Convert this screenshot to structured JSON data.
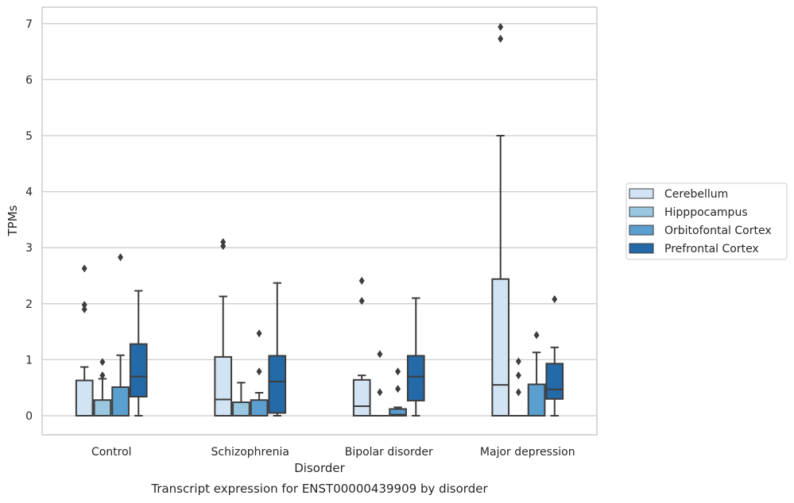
{
  "chart_data": {
    "type": "box",
    "title": "",
    "caption": "Transcript expression for ENST00000439909 by disorder",
    "xlabel": "Disorder",
    "ylabel": "TPMs",
    "ylim": [
      -0.35,
      7.3
    ],
    "yticks": [
      0,
      1,
      2,
      3,
      4,
      5,
      6,
      7
    ],
    "grid": true,
    "legend_position": "right",
    "categories": [
      "Control",
      "Schizophrenia",
      "Bipolar disorder",
      "Major depression"
    ],
    "series": [
      {
        "name": "Cerebellum",
        "color": "#d2e3f3",
        "boxes": [
          {
            "q1": 0,
            "median": 0,
            "q3": 0.63,
            "whisker_low": 0,
            "whisker_high": 0.87,
            "outliers": [
              1.9,
              1.98,
              2.63
            ]
          },
          {
            "q1": 0,
            "median": 0.29,
            "q3": 1.05,
            "whisker_low": 0,
            "whisker_high": 2.13,
            "outliers": [
              3.03,
              3.1
            ]
          },
          {
            "q1": 0,
            "median": 0.17,
            "q3": 0.64,
            "whisker_low": 0,
            "whisker_high": 0.72,
            "outliers": [
              2.05,
              2.41
            ]
          },
          {
            "q1": 0,
            "median": 0.55,
            "q3": 2.44,
            "whisker_low": 0,
            "whisker_high": 5.0,
            "outliers": [
              6.73,
              6.94
            ]
          }
        ]
      },
      {
        "name": "Hipppocampus",
        "color": "#9ac8e0",
        "boxes": [
          {
            "q1": 0,
            "median": 0,
            "q3": 0.28,
            "whisker_low": 0,
            "whisker_high": 0.66,
            "outliers": [
              0.72,
              0.96
            ]
          },
          {
            "q1": 0,
            "median": 0,
            "q3": 0.24,
            "whisker_low": 0,
            "whisker_high": 0.59,
            "outliers": []
          },
          {
            "q1": 0,
            "median": 0,
            "q3": 0,
            "whisker_low": 0,
            "whisker_high": 0,
            "outliers": [
              0.42,
              1.1
            ]
          },
          {
            "q1": 0,
            "median": 0,
            "q3": 0,
            "whisker_low": 0,
            "whisker_high": 0,
            "outliers": [
              0.42,
              0.72,
              0.97
            ]
          }
        ]
      },
      {
        "name": "Orbitofontal Cortex",
        "color": "#5a9fcf",
        "boxes": [
          {
            "q1": 0,
            "median": 0,
            "q3": 0.51,
            "whisker_low": 0,
            "whisker_high": 1.08,
            "outliers": [
              2.83
            ]
          },
          {
            "q1": 0,
            "median": 0,
            "q3": 0.28,
            "whisker_low": 0,
            "whisker_high": 0.41,
            "outliers": [
              0.79,
              1.47
            ]
          },
          {
            "q1": 0,
            "median": 0.02,
            "q3": 0.12,
            "whisker_low": 0,
            "whisker_high": 0.15,
            "outliers": [
              0.48,
              0.79
            ]
          },
          {
            "q1": 0,
            "median": 0,
            "q3": 0.56,
            "whisker_low": 0,
            "whisker_high": 1.13,
            "outliers": [
              1.44
            ]
          }
        ]
      },
      {
        "name": "Prefrontal Cortex",
        "color": "#2469a8",
        "boxes": [
          {
            "q1": 0.34,
            "median": 0.7,
            "q3": 1.28,
            "whisker_low": 0,
            "whisker_high": 2.23,
            "outliers": []
          },
          {
            "q1": 0.05,
            "median": 0.61,
            "q3": 1.07,
            "whisker_low": 0,
            "whisker_high": 2.37,
            "outliers": []
          },
          {
            "q1": 0.27,
            "median": 0.7,
            "q3": 1.07,
            "whisker_low": 0,
            "whisker_high": 2.1,
            "outliers": []
          },
          {
            "q1": 0.3,
            "median": 0.47,
            "q3": 0.93,
            "whisker_low": 0,
            "whisker_high": 1.22,
            "outliers": [
              2.08
            ]
          }
        ]
      }
    ]
  }
}
